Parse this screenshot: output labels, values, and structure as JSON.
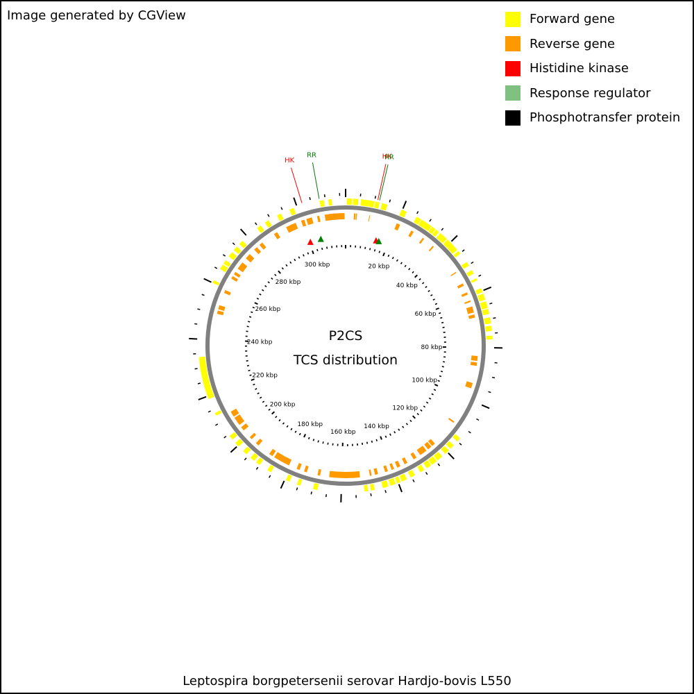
{
  "header": {
    "note": "Image generated by CGView"
  },
  "legend": {
    "items": [
      {
        "label": "Forward gene",
        "color": "#ffff00",
        "icon": "legend-swatch-icon"
      },
      {
        "label": "Reverse gene",
        "color": "#ff9900",
        "icon": "legend-swatch-icon"
      },
      {
        "label": "Histidine kinase",
        "color": "#ff0000",
        "icon": "legend-swatch-icon"
      },
      {
        "label": "Response regulator",
        "color": "#80c080",
        "icon": "legend-swatch-icon"
      },
      {
        "label": "Phosphotransfer protein",
        "color": "#000000",
        "icon": "legend-swatch-icon"
      }
    ]
  },
  "map": {
    "center_line_1": "P2CS",
    "center_line_2": "TCS distribution",
    "total_kbp": 317,
    "kbp_labels": [
      "20 kbp",
      "40 kbp",
      "60 kbp",
      "80 kbp",
      "100 kbp",
      "120 kbp",
      "140 kbp",
      "160 kbp",
      "180 kbp",
      "200 kbp",
      "220 kbp",
      "240 kbp",
      "260 kbp",
      "280 kbp",
      "300 kbp"
    ],
    "kbp_values": [
      20,
      40,
      60,
      80,
      100,
      120,
      140,
      160,
      180,
      200,
      220,
      240,
      260,
      280,
      300
    ],
    "colors": {
      "forward": "#ffff00",
      "reverse": "#ff9900",
      "hk": "#ff0000",
      "rr_marker": "#008000",
      "hk_text": "#ff0000",
      "rr_text": "#007a00",
      "backbone": "#808080",
      "ticks": "#000000"
    },
    "callouts": [
      {
        "label": "HK",
        "kind": "hk",
        "kbp": 302
      },
      {
        "label": "RR",
        "kind": "rr",
        "kbp": 308
      },
      {
        "label": "HK",
        "kind": "hk",
        "kbp": 11
      },
      {
        "label": "RR",
        "kind": "rr",
        "kbp": 11.6
      }
    ],
    "markers": [
      {
        "kind": "hk",
        "kbp": 300.5
      },
      {
        "kind": "rr",
        "kbp": 305.5
      },
      {
        "kind": "hk",
        "kbp": 14.2
      },
      {
        "kind": "rr",
        "kbp": 15.5
      }
    ],
    "forward_genes": [
      [
        0.4,
        2.2
      ],
      [
        2.6,
        4.4
      ],
      [
        5.3,
        10.0
      ],
      [
        10.3,
        11.8
      ],
      [
        12.6,
        14.6
      ],
      [
        19.7,
        20.8
      ],
      [
        20.7,
        21.6
      ],
      [
        25.4,
        27.2
      ],
      [
        27.4,
        31.5
      ],
      [
        31.7,
        33.2
      ],
      [
        33.4,
        34.7
      ],
      [
        35.3,
        38.3
      ],
      [
        38.6,
        43.5
      ],
      [
        44.0,
        45.2
      ],
      [
        48.7,
        50.2
      ],
      [
        52.0,
        53.4
      ],
      [
        55.2,
        56.0
      ],
      [
        59.0,
        60.5
      ],
      [
        61.0,
        63.2
      ],
      [
        63.8,
        66.2
      ],
      [
        66.5,
        68.3
      ],
      [
        69.5,
        71.6
      ],
      [
        72.4,
        74.2
      ],
      [
        75.8,
        77.1
      ],
      [
        113.5,
        115.0
      ],
      [
        116.8,
        118.5
      ],
      [
        119.2,
        121.0
      ],
      [
        122.3,
        124.5
      ],
      [
        124.8,
        126.9
      ],
      [
        127.2,
        129.0
      ],
      [
        130.0,
        131.6
      ],
      [
        133.7,
        135.4
      ],
      [
        136.8,
        138.7
      ],
      [
        139.2,
        140.5
      ],
      [
        141.0,
        142.9
      ],
      [
        143.6,
        145.6
      ],
      [
        148.4,
        149.8
      ],
      [
        150.7,
        152.0
      ],
      [
        168.2,
        169.8
      ],
      [
        174.3,
        175.5
      ],
      [
        178.2,
        179.6
      ],
      [
        185.4,
        186.8
      ],
      [
        190.0,
        191.5
      ],
      [
        192.3,
        194.0
      ],
      [
        195.8,
        197.4
      ],
      [
        199.6,
        201.3
      ],
      [
        202.8,
        204.4
      ],
      [
        212.7,
        213.7
      ],
      [
        219.0,
        233.8
      ],
      [
        260.0,
        261.0
      ],
      [
        265.4,
        267.2
      ],
      [
        267.6,
        269.0
      ],
      [
        270.6,
        272.5
      ],
      [
        273.4,
        275.0
      ],
      [
        276.2,
        277.8
      ],
      [
        284.4,
        286.0
      ],
      [
        287.7,
        289.2
      ],
      [
        292.5,
        294.0
      ],
      [
        297.2,
        298.8
      ],
      [
        308.0,
        309.5
      ],
      [
        311.0,
        312.2
      ]
    ],
    "reverse_genes": [
      [
        3.2,
        3.8
      ],
      [
        4.0,
        4.4
      ],
      [
        9.1,
        9.4
      ],
      [
        20.0,
        21.4
      ],
      [
        26.2,
        27.2
      ],
      [
        31.3,
        32.0
      ],
      [
        36.2,
        36.8
      ],
      [
        49.5,
        49.9
      ],
      [
        54.6,
        55.6
      ],
      [
        58.4,
        59.3
      ],
      [
        61.7,
        62.3
      ],
      [
        64.1,
        66.5
      ],
      [
        67.3,
        68.5
      ],
      [
        83.2,
        85.1
      ],
      [
        85.7,
        87.0
      ],
      [
        93.7,
        95.8
      ],
      [
        110.0,
        110.6
      ],
      [
        121.2,
        122.6
      ],
      [
        123.0,
        124.6
      ],
      [
        125.4,
        128.3
      ],
      [
        130.0,
        131.3
      ],
      [
        134.0,
        135.2
      ],
      [
        137.0,
        138.3
      ],
      [
        139.6,
        140.6
      ],
      [
        142.1,
        143.2
      ],
      [
        146.0,
        147.2
      ],
      [
        148.5,
        149.2
      ],
      [
        153.0,
        164.8
      ],
      [
        168.3,
        169.3
      ],
      [
        173.5,
        174.6
      ],
      [
        176.4,
        177.6
      ],
      [
        180.8,
        187.2
      ],
      [
        188.0,
        189.5
      ],
      [
        194.7,
        196.0
      ],
      [
        198.2,
        199.3
      ],
      [
        202.7,
        204.3
      ],
      [
        205.4,
        208.7
      ],
      [
        209.2,
        211.4
      ],
      [
        250.0,
        251.3
      ],
      [
        251.8,
        253.4
      ],
      [
        258.4,
        259.6
      ],
      [
        264.5,
        265.6
      ],
      [
        266.4,
        267.5
      ],
      [
        269.0,
        272.0
      ],
      [
        274.0,
        276.2
      ],
      [
        278.6,
        280.0
      ],
      [
        281.3,
        282.7
      ],
      [
        288.2,
        289.6
      ],
      [
        293.5,
        297.5
      ],
      [
        299.7,
        301.0
      ],
      [
        301.8,
        304.0
      ],
      [
        306.0,
        306.9
      ],
      [
        309.0,
        316.6
      ],
      [
        310.7,
        312.8
      ]
    ]
  }
}
